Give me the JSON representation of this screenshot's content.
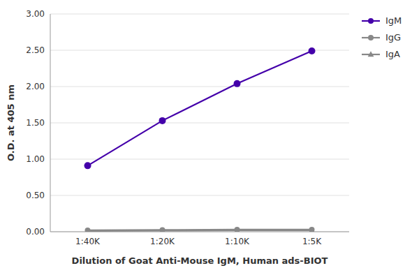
{
  "chart_data": {
    "type": "line",
    "categories": [
      "1:40K",
      "1:20K",
      "1:10K",
      "1:5K"
    ],
    "series": [
      {
        "name": "IgM",
        "color": "#4400AA",
        "marker": "circle",
        "values": [
          0.91,
          1.53,
          2.04,
          2.49
        ]
      },
      {
        "name": "IgG",
        "color": "#888888",
        "marker": "circle",
        "values": [
          0.02,
          0.025,
          0.03,
          0.03
        ]
      },
      {
        "name": "IgA",
        "color": "#888888",
        "marker": "triangle",
        "values": [
          0.01,
          0.015,
          0.02,
          0.02
        ]
      }
    ],
    "x_label": "Dilution of Goat Anti-Mouse IgM, Human ads-BIOT",
    "y_label": "O.D. at 405 nm",
    "ylim": [
      0.0,
      3.0
    ],
    "yticks": [
      {
        "value": 0.0,
        "label": "0.00"
      },
      {
        "value": 0.5,
        "label": "0.50"
      },
      {
        "value": 1.0,
        "label": "1.00"
      },
      {
        "value": 1.5,
        "label": "1.50"
      },
      {
        "value": 2.0,
        "label": "2.00"
      },
      {
        "value": 2.5,
        "label": "2.50"
      },
      {
        "value": 3.0,
        "label": "3.00"
      }
    ],
    "grid": true,
    "legend": "right"
  }
}
